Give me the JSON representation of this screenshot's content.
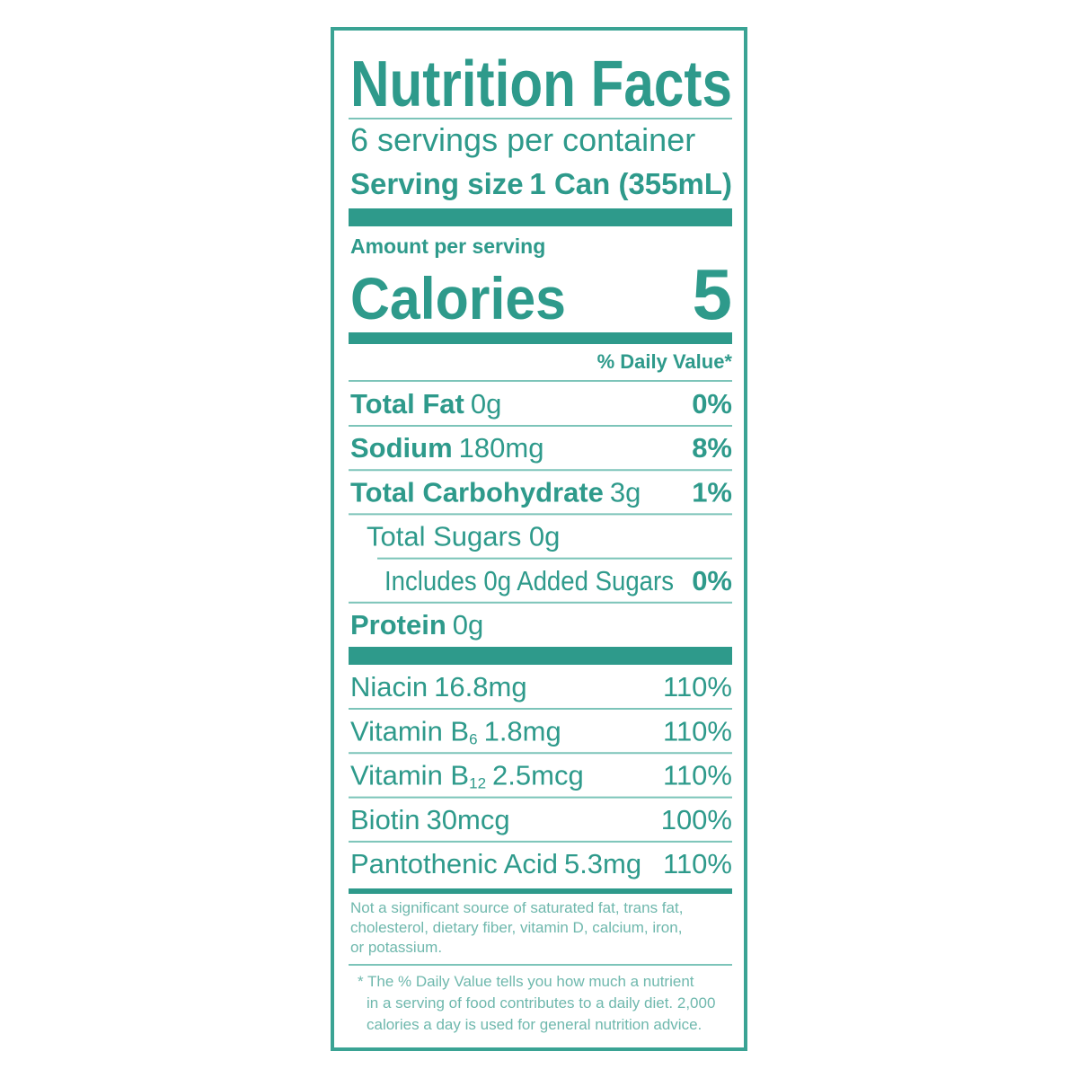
{
  "title": "Nutrition Facts",
  "servings": "6 servings per container",
  "serving_size": {
    "label": "Serving size",
    "value": "1 Can (355mL)"
  },
  "amount_per_serving": "Amount per serving",
  "calories": {
    "label": "Calories",
    "value": "5"
  },
  "daily_value_header": "% Daily Value*",
  "nutrients": [
    {
      "name": "Total Fat",
      "amount": "0g",
      "dv": "0%"
    },
    {
      "name": "Sodium",
      "amount": "180mg",
      "dv": "8%"
    },
    {
      "name": "Total Carbohydrate",
      "amount": "3g",
      "dv": "1%"
    },
    {
      "amount": "Total Sugars 0g"
    },
    {
      "amount": "Includes 0g Added Sugars",
      "dv": "0%"
    },
    {
      "name": "Protein",
      "amount": "0g"
    }
  ],
  "vitamins": [
    {
      "name": "Niacin",
      "amount": "16.8mg",
      "dv": "110%"
    },
    {
      "name": "Vitamin B",
      "sub": "6",
      "amount": "1.8mg",
      "dv": "110%"
    },
    {
      "name": "Vitamin B",
      "sub": "12",
      "amount": "2.5mcg",
      "dv": "110%"
    },
    {
      "name": "Biotin",
      "amount": "30mcg",
      "dv": "100%"
    },
    {
      "name": "Pantothenic Acid",
      "amount": "5.3mg",
      "dv": "110%"
    }
  ],
  "footnote_1": [
    "Not a significant source of saturated fat, trans fat,",
    "cholesterol, dietary fiber, vitamin D, calcium, iron,",
    "or potassium."
  ],
  "footnote_2": [
    "* The % Daily Value tells you how much a nutrient",
    "in a serving of food contributes to a daily diet. 2,000",
    "calories a day is used for general nutrition advice."
  ]
}
